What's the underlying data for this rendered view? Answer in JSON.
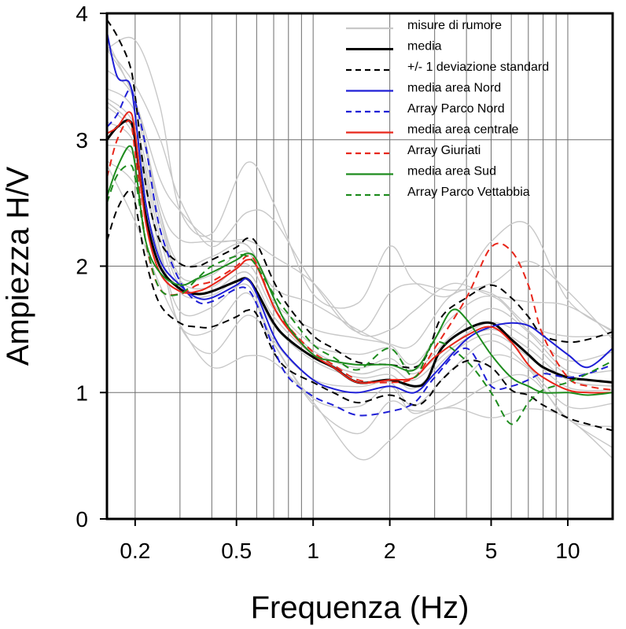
{
  "chart_data": {
    "type": "line",
    "xlabel": "Frequenza (Hz)",
    "ylabel": "Ampiezza H/V",
    "x_scale": "log",
    "xlim": [
      0.155,
      15
    ],
    "ylim": [
      0,
      4
    ],
    "x_ticks": [
      {
        "value": 0.2,
        "label": "0.2"
      },
      {
        "value": 0.5,
        "label": "0.5"
      },
      {
        "value": 1,
        "label": "1"
      },
      {
        "value": 2,
        "label": "2"
      },
      {
        "value": 5,
        "label": "5"
      },
      {
        "value": 10,
        "label": "10"
      }
    ],
    "y_ticks": [
      {
        "value": 0,
        "label": "0"
      },
      {
        "value": 1,
        "label": "1"
      },
      {
        "value": 2,
        "label": "2"
      },
      {
        "value": 3,
        "label": "3"
      },
      {
        "value": 4,
        "label": "4"
      }
    ],
    "grid": true,
    "legend_position": "top-right",
    "series": [
      {
        "name": "misure di rumore",
        "color": "#c8c8c8",
        "dash": "solid",
        "width": 1.6,
        "x": [
          0.155,
          0.2,
          0.25,
          0.3,
          0.4,
          0.55,
          0.7,
          1,
          1.5,
          2,
          2.5,
          3.5,
          5,
          7,
          10,
          15
        ],
        "y": [
          3.3,
          3.05,
          2.3,
          1.85,
          1.8,
          1.95,
          1.6,
          1.3,
          1.15,
          1.2,
          1.1,
          1.35,
          1.5,
          1.35,
          1.1,
          1.05
        ]
      },
      {
        "name": "media",
        "color": "#000000",
        "dash": "solid",
        "width": 3,
        "x": [
          0.155,
          0.17,
          0.19,
          0.2,
          0.22,
          0.25,
          0.3,
          0.35,
          0.4,
          0.5,
          0.55,
          0.6,
          0.7,
          0.8,
          1,
          1.2,
          1.5,
          2,
          2.5,
          2.8,
          3.2,
          4,
          5,
          6,
          7,
          8,
          10,
          12,
          15
        ],
        "y": [
          3.0,
          3.1,
          3.15,
          3.0,
          2.4,
          2.0,
          1.82,
          1.78,
          1.8,
          1.88,
          1.9,
          1.8,
          1.55,
          1.42,
          1.28,
          1.2,
          1.08,
          1.1,
          1.05,
          1.1,
          1.35,
          1.5,
          1.55,
          1.42,
          1.3,
          1.2,
          1.12,
          1.1,
          1.08
        ]
      },
      {
        "name": "+/- 1 deviazione standard",
        "color": "#000000",
        "dash": "dashed",
        "width": 2,
        "x": [
          0.155,
          0.17,
          0.19,
          0.2,
          0.22,
          0.25,
          0.3,
          0.35,
          0.4,
          0.5,
          0.55,
          0.6,
          0.7,
          0.8,
          1,
          1.2,
          1.5,
          2,
          2.5,
          2.8,
          3.2,
          4,
          5,
          6,
          7,
          8,
          10,
          12,
          15
        ],
        "y": [
          3.95,
          3.82,
          3.6,
          3.35,
          2.65,
          2.2,
          2.02,
          2.0,
          2.05,
          2.15,
          2.22,
          2.18,
          1.88,
          1.68,
          1.45,
          1.35,
          1.24,
          1.22,
          1.2,
          1.3,
          1.6,
          1.75,
          1.85,
          1.75,
          1.6,
          1.45,
          1.4,
          1.42,
          1.48
        ]
      },
      {
        "name": "",
        "color": "#000000",
        "dash": "dashed",
        "width": 2,
        "x": [
          0.155,
          0.17,
          0.19,
          0.2,
          0.22,
          0.25,
          0.3,
          0.35,
          0.4,
          0.5,
          0.55,
          0.6,
          0.7,
          0.8,
          1,
          1.2,
          1.5,
          2,
          2.5,
          2.8,
          3.2,
          4,
          5,
          6,
          7,
          8,
          10,
          12,
          15
        ],
        "y": [
          2.2,
          2.45,
          2.6,
          2.5,
          2.05,
          1.7,
          1.55,
          1.52,
          1.52,
          1.6,
          1.65,
          1.62,
          1.32,
          1.18,
          1.08,
          1.0,
          0.92,
          0.98,
          0.9,
          0.95,
          1.1,
          1.25,
          1.2,
          1.02,
          0.98,
          0.9,
          0.8,
          0.75,
          0.7
        ]
      },
      {
        "name": "media area Nord",
        "color": "#1f1fd6",
        "dash": "solid",
        "width": 2,
        "x": [
          0.155,
          0.17,
          0.19,
          0.2,
          0.22,
          0.25,
          0.3,
          0.35,
          0.4,
          0.5,
          0.55,
          0.6,
          0.7,
          0.8,
          1,
          1.2,
          1.5,
          2,
          2.5,
          3,
          4,
          5,
          6,
          7,
          8,
          10,
          12,
          15
        ],
        "y": [
          3.85,
          3.5,
          3.45,
          3.2,
          2.5,
          2.05,
          1.85,
          1.75,
          1.75,
          1.85,
          1.9,
          1.78,
          1.45,
          1.28,
          1.1,
          1.03,
          1.0,
          1.05,
          1.0,
          1.15,
          1.42,
          1.52,
          1.55,
          1.53,
          1.45,
          1.3,
          1.2,
          1.35
        ]
      },
      {
        "name": "Array Parco Nord",
        "color": "#1f1fd6",
        "dash": "dashed",
        "width": 2,
        "x": [
          0.155,
          0.17,
          0.19,
          0.2,
          0.22,
          0.25,
          0.3,
          0.35,
          0.4,
          0.5,
          0.55,
          0.6,
          0.7,
          0.8,
          1,
          1.2,
          1.5,
          2,
          2.5,
          3,
          4,
          5,
          6,
          7,
          8,
          10,
          12,
          15
        ],
        "y": [
          3.1,
          3.2,
          3.4,
          3.3,
          2.95,
          2.3,
          1.88,
          1.72,
          1.72,
          1.82,
          1.82,
          1.7,
          1.35,
          1.12,
          0.97,
          0.9,
          0.82,
          0.85,
          0.92,
          1.12,
          1.35,
          1.05,
          1.05,
          1.1,
          1.15,
          1.12,
          1.15,
          1.22
        ]
      },
      {
        "name": "media area centrale",
        "color": "#e8261a",
        "dash": "solid",
        "width": 2,
        "x": [
          0.155,
          0.17,
          0.19,
          0.2,
          0.22,
          0.25,
          0.3,
          0.35,
          0.4,
          0.5,
          0.55,
          0.6,
          0.7,
          0.8,
          1,
          1.2,
          1.5,
          2,
          2.5,
          3,
          4,
          5,
          6,
          7,
          8,
          10,
          12,
          15
        ],
        "y": [
          3.05,
          3.1,
          3.22,
          3.05,
          2.35,
          1.95,
          1.8,
          1.8,
          1.85,
          1.98,
          2.05,
          2.0,
          1.68,
          1.5,
          1.3,
          1.2,
          1.08,
          1.1,
          1.12,
          1.28,
          1.45,
          1.52,
          1.4,
          1.22,
          1.12,
          1.02,
          1.0,
          1.0
        ]
      },
      {
        "name": "Array Giuriati",
        "color": "#e8261a",
        "dash": "dashed",
        "width": 2,
        "x": [
          0.155,
          0.17,
          0.19,
          0.2,
          0.22,
          0.25,
          0.3,
          0.35,
          0.4,
          0.5,
          0.55,
          0.6,
          0.7,
          0.8,
          1,
          1.2,
          1.5,
          2,
          2.5,
          3,
          4,
          5,
          6,
          7,
          8,
          10,
          12,
          15
        ],
        "y": [
          2.7,
          3.0,
          3.15,
          2.9,
          2.2,
          1.82,
          1.78,
          1.85,
          1.88,
          2.0,
          2.08,
          2.02,
          1.68,
          1.52,
          1.32,
          1.22,
          1.1,
          1.08,
          1.12,
          1.35,
          1.75,
          2.15,
          2.12,
          1.85,
          1.45,
          1.12,
          1.05,
          1.02
        ]
      },
      {
        "name": "media area Sud",
        "color": "#1e8c1e",
        "dash": "solid",
        "width": 2,
        "x": [
          0.155,
          0.17,
          0.19,
          0.2,
          0.22,
          0.25,
          0.3,
          0.35,
          0.4,
          0.5,
          0.55,
          0.6,
          0.7,
          0.8,
          1,
          1.2,
          1.5,
          2,
          2.5,
          3,
          3.5,
          4,
          5,
          6,
          7,
          8,
          10,
          12,
          15
        ],
        "y": [
          2.55,
          2.78,
          2.95,
          2.8,
          2.2,
          1.95,
          1.85,
          1.9,
          1.95,
          2.05,
          2.1,
          2.05,
          1.75,
          1.52,
          1.3,
          1.25,
          1.22,
          1.22,
          1.18,
          1.42,
          1.65,
          1.58,
          1.3,
          1.12,
          1.05,
          1.0,
          1.0,
          0.98,
          1.0
        ]
      },
      {
        "name": "Array Parco Vettabbia",
        "color": "#1e8c1e",
        "dash": "dashed",
        "width": 2,
        "x": [
          0.155,
          0.17,
          0.19,
          0.2,
          0.22,
          0.25,
          0.3,
          0.35,
          0.4,
          0.5,
          0.55,
          0.6,
          0.7,
          0.8,
          1,
          1.2,
          1.5,
          2,
          2.5,
          3,
          4,
          5,
          6,
          7,
          8,
          10,
          12,
          15
        ],
        "y": [
          2.5,
          2.72,
          2.8,
          2.7,
          2.2,
          1.82,
          1.78,
          1.9,
          2.0,
          2.08,
          2.08,
          2.0,
          1.78,
          1.62,
          1.38,
          1.28,
          1.18,
          1.35,
          1.12,
          1.4,
          1.25,
          1.0,
          0.75,
          0.92,
          1.02,
          1.08,
          1.15,
          1.25
        ]
      }
    ]
  }
}
